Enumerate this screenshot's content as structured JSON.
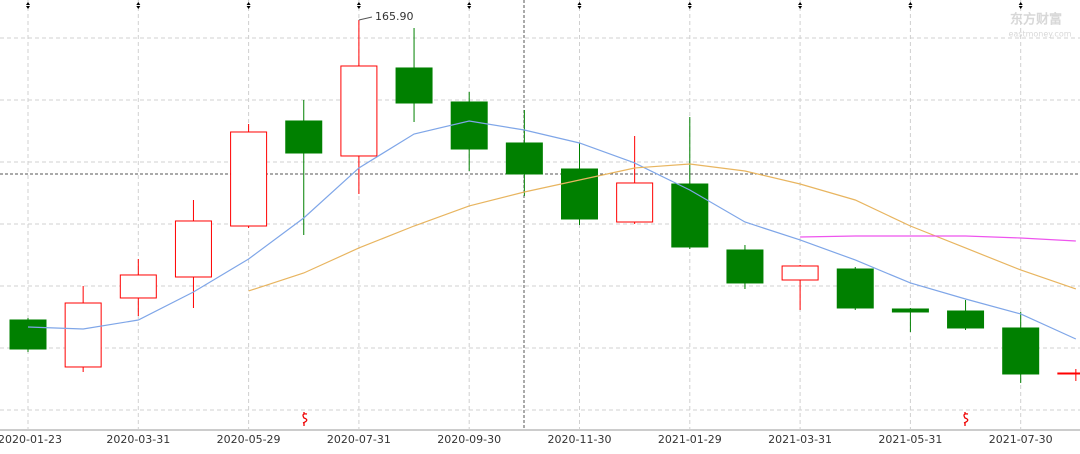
{
  "chart_data": {
    "type": "candlestick",
    "categories": [
      "2020-01-23",
      null,
      "2020-03-31",
      null,
      "2020-05-29",
      null,
      "2020-07-31",
      null,
      "2020-09-30",
      null,
      "2020-11-30",
      null,
      "2021-01-29",
      null,
      "2021-03-31",
      null,
      "2021-05-31",
      null,
      "2021-07-30",
      null
    ],
    "candles": [
      {
        "open": 69.12,
        "high": 69.77,
        "low": 58.8,
        "close": 59.76
      },
      {
        "open": 53.96,
        "high": 80.09,
        "low": 52.34,
        "close": 74.6
      },
      {
        "open": 76.22,
        "high": 88.8,
        "low": 70.41,
        "close": 83.64
      },
      {
        "open": 82.99,
        "high": 107.83,
        "low": 72.99,
        "close": 101.06
      },
      {
        "open": 99.44,
        "high": 132.35,
        "low": 98.8,
        "close": 129.77
      },
      {
        "open": 133.32,
        "high": 140.09,
        "low": 96.54,
        "close": 122.99
      },
      {
        "open": 122.03,
        "high": 165.9,
        "low": 109.77,
        "close": 151.06
      },
      {
        "open": 150.42,
        "high": 163.32,
        "low": 132.99,
        "close": 139.12
      },
      {
        "open": 139.45,
        "high": 142.67,
        "low": 117.19,
        "close": 124.28
      },
      {
        "open": 126.22,
        "high": 136.87,
        "low": 109.12,
        "close": 116.22
      },
      {
        "open": 117.83,
        "high": 126.22,
        "low": 99.77,
        "close": 101.7
      },
      {
        "open": 100.73,
        "high": 128.48,
        "low": 100.09,
        "close": 113.32
      },
      {
        "open": 112.99,
        "high": 134.61,
        "low": 92.02,
        "close": 92.67
      },
      {
        "open": 91.7,
        "high": 93.31,
        "low": 79.12,
        "close": 81.06
      },
      {
        "open": 82.02,
        "high": 86.86,
        "low": 72.35,
        "close": 86.54
      },
      {
        "open": 85.57,
        "high": 86.22,
        "low": 72.35,
        "close": 72.99
      },
      {
        "open": 72.67,
        "high": 72.99,
        "low": 65.25,
        "close": 71.7
      },
      {
        "open": 72.02,
        "high": 75.57,
        "low": 65.89,
        "close": 66.54
      },
      {
        "open": 66.54,
        "high": 71.7,
        "low": 48.8,
        "close": 51.7
      },
      {
        "open": 51.7,
        "high": 53.31,
        "low": 49.44,
        "close": 52.02
      }
    ],
    "up_color": "#ff0000",
    "down_color": "#008000",
    "lines": [
      {
        "color": "#7fa6e8",
        "values": [
          66.86,
          66.21,
          69.12,
          78.15,
          88.8,
          102.03,
          118.16,
          129.12,
          133.32,
          130.41,
          126.22,
          119.77,
          111.06,
          100.73,
          94.93,
          88.48,
          81.06,
          75.89,
          71.06,
          62.99
        ]
      },
      {
        "color": "#e8b560",
        "values": [
          null,
          null,
          null,
          null,
          78.48,
          84.28,
          92.35,
          99.44,
          105.9,
          110.41,
          114.28,
          118.16,
          119.45,
          117.19,
          112.99,
          107.83,
          99.44,
          92.35,
          85.25,
          79.12
        ]
      },
      {
        "color": "#ee55ee",
        "values": [
          null,
          null,
          null,
          null,
          null,
          null,
          null,
          null,
          null,
          null,
          null,
          null,
          null,
          null,
          95.9,
          96.22,
          96.22,
          96.22,
          95.57,
          94.61
        ]
      }
    ],
    "ylim": [
      33.63,
      172.35
    ],
    "annotation": "165.90",
    "watermark": "东方财富",
    "watermark_sub": "eastmoney.com"
  }
}
